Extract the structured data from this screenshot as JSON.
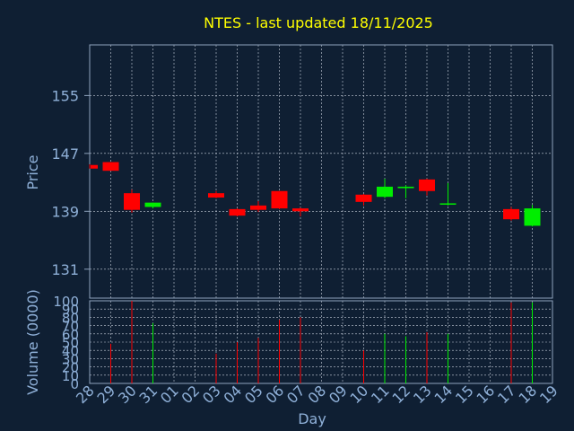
{
  "chart_data": {
    "type": "candlestick",
    "title": "NTES - last updated 18/11/2025",
    "xlabel": "Day",
    "price_panel": {
      "ylabel": "Price",
      "yticks": [
        131,
        139,
        147,
        155
      ],
      "ylim": [
        127,
        162
      ]
    },
    "volume_panel": {
      "ylabel": "Volume (0000)",
      "yticks": [
        0,
        10,
        20,
        30,
        40,
        50,
        60,
        70,
        80,
        90,
        100
      ],
      "ylim": [
        0,
        100
      ]
    },
    "x_ticks": [
      "28",
      "29",
      "30",
      "31",
      "01",
      "02",
      "03",
      "04",
      "05",
      "06",
      "07",
      "08",
      "09",
      "10",
      "11",
      "12",
      "13",
      "14",
      "15",
      "16",
      "17",
      "18",
      "19"
    ],
    "colors": {
      "up": "#00ee00",
      "down": "#ff0000",
      "background": "#0f1f33",
      "title": "#ffff00",
      "text": "#8fb0d8"
    },
    "candles": [
      {
        "day": "28",
        "open": 145.4,
        "high": 145.5,
        "low": 144.9,
        "close": 144.9
      },
      {
        "day": "29",
        "open": 145.8,
        "high": 145.8,
        "low": 144.6,
        "close": 144.6
      },
      {
        "day": "30",
        "open": 141.5,
        "high": 142.0,
        "low": 138.8,
        "close": 139.2
      },
      {
        "day": "31",
        "open": 139.6,
        "high": 140.2,
        "low": 139.4,
        "close": 140.2
      },
      {
        "day": "03",
        "open": 141.5,
        "high": 141.8,
        "low": 140.8,
        "close": 140.9
      },
      {
        "day": "04",
        "open": 139.3,
        "high": 139.4,
        "low": 138.3,
        "close": 138.4
      },
      {
        "day": "05",
        "open": 139.8,
        "high": 140.4,
        "low": 138.9,
        "close": 139.2
      },
      {
        "day": "06",
        "open": 141.8,
        "high": 141.8,
        "low": 139.3,
        "close": 139.4
      },
      {
        "day": "07",
        "open": 139.4,
        "high": 139.5,
        "low": 138.3,
        "close": 139.0
      },
      {
        "day": "10",
        "open": 141.3,
        "high": 141.4,
        "low": 139.8,
        "close": 140.3
      },
      {
        "day": "11",
        "open": 141.0,
        "high": 143.5,
        "low": 140.8,
        "close": 142.4
      },
      {
        "day": "12",
        "open": 142.2,
        "high": 142.6,
        "low": 140.8,
        "close": 142.4
      },
      {
        "day": "13",
        "open": 143.4,
        "high": 143.5,
        "low": 141.2,
        "close": 141.8
      },
      {
        "day": "14",
        "open": 140.0,
        "high": 142.9,
        "low": 139.8,
        "close": 140.1
      },
      {
        "day": "17",
        "open": 139.3,
        "high": 139.6,
        "low": 137.7,
        "close": 137.9
      },
      {
        "day": "18",
        "open": 137.0,
        "high": 139.9,
        "low": 136.9,
        "close": 139.4
      }
    ],
    "volumes": [
      {
        "day": "29",
        "value": 48,
        "dir": "down"
      },
      {
        "day": "30",
        "value": 100,
        "dir": "down"
      },
      {
        "day": "31",
        "value": 73,
        "dir": "up"
      },
      {
        "day": "03",
        "value": 36,
        "dir": "down"
      },
      {
        "day": "04",
        "value": 50,
        "dir": "down"
      },
      {
        "day": "05",
        "value": 55,
        "dir": "down"
      },
      {
        "day": "06",
        "value": 77,
        "dir": "down"
      },
      {
        "day": "07",
        "value": 80,
        "dir": "down"
      },
      {
        "day": "10",
        "value": 40,
        "dir": "down"
      },
      {
        "day": "11",
        "value": 60,
        "dir": "up"
      },
      {
        "day": "12",
        "value": 57,
        "dir": "up"
      },
      {
        "day": "13",
        "value": 62,
        "dir": "down"
      },
      {
        "day": "14",
        "value": 60,
        "dir": "up"
      },
      {
        "day": "17",
        "value": 98,
        "dir": "down"
      },
      {
        "day": "18",
        "value": 98,
        "dir": "up"
      }
    ]
  }
}
